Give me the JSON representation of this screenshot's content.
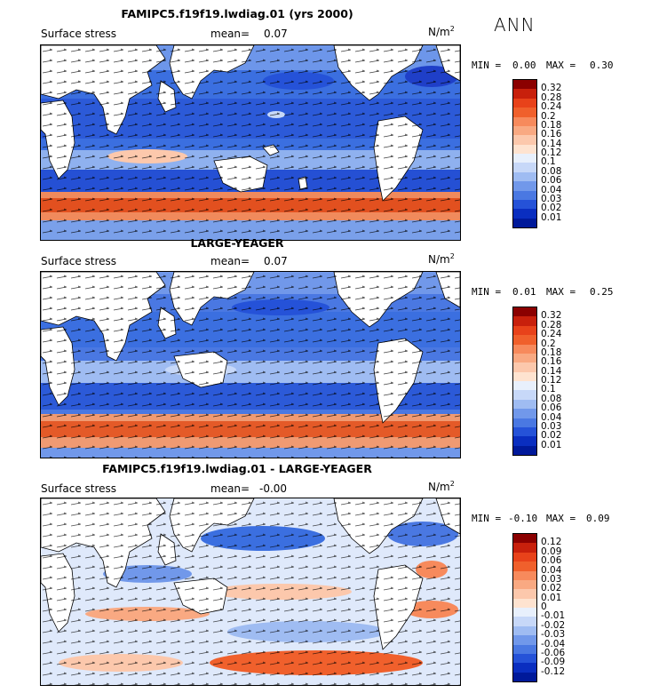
{
  "season": "ANN",
  "colors": {
    "ocean_base": "#3b6fe0",
    "land": "#ffffff"
  },
  "panels": [
    {
      "title": "FAMIPC5.f19f19.lwdiag.01 (yrs 2000)",
      "left_label": "Surface stress",
      "mean_label": "mean=",
      "mean_value": "0.07",
      "unit": "N/m",
      "unit_exp": "2",
      "min_label": "MIN =",
      "min_value": "0.00",
      "max_label": "MAX =",
      "max_value": "0.30",
      "levels": [
        "0.32",
        "0.28",
        "0.24",
        "0.2",
        "0.18",
        "0.16",
        "0.14",
        "0.12",
        "0.1",
        "0.08",
        "0.06",
        "0.04",
        "0.03",
        "0.02",
        "0.01"
      ],
      "colors": [
        "#8b0000",
        "#c8200c",
        "#e8421a",
        "#f0602c",
        "#f78a5c",
        "#f9a982",
        "#fcc8ac",
        "#fee3d0",
        "#e8f0fc",
        "#c7d8f8",
        "#9fbcf2",
        "#7198ea",
        "#4a78e2",
        "#2552d8",
        "#0a2ec0",
        "#00199a"
      ]
    },
    {
      "title": "LARGE-YEAGER",
      "left_label": "Surface stress",
      "mean_label": "mean=",
      "mean_value": "0.07",
      "unit": "N/m",
      "unit_exp": "2",
      "min_label": "MIN =",
      "min_value": "0.01",
      "max_label": "MAX =",
      "max_value": "0.25",
      "levels": [
        "0.32",
        "0.28",
        "0.24",
        "0.2",
        "0.18",
        "0.16",
        "0.14",
        "0.12",
        "0.1",
        "0.08",
        "0.06",
        "0.04",
        "0.03",
        "0.02",
        "0.01"
      ],
      "colors": [
        "#8b0000",
        "#c8200c",
        "#e8421a",
        "#f0602c",
        "#f78a5c",
        "#f9a982",
        "#fcc8ac",
        "#fee3d0",
        "#e8f0fc",
        "#c7d8f8",
        "#9fbcf2",
        "#7198ea",
        "#4a78e2",
        "#2552d8",
        "#0a2ec0",
        "#00199a"
      ]
    },
    {
      "title": "FAMIPC5.f19f19.lwdiag.01 - LARGE-YEAGER",
      "left_label": "Surface stress",
      "mean_label": "mean=",
      "mean_value": "-0.00",
      "unit": "N/m",
      "unit_exp": "2",
      "min_label": "MIN =",
      "min_value": "-0.10",
      "max_label": "MAX =",
      "max_value": "0.09",
      "levels": [
        "0.12",
        "0.09",
        "0.06",
        "0.04",
        "0.03",
        "0.02",
        "0.01",
        "0",
        "-0.01",
        "-0.02",
        "-0.03",
        "-0.04",
        "-0.06",
        "-0.09",
        "-0.12"
      ],
      "colors": [
        "#8b0000",
        "#c8200c",
        "#e8421a",
        "#f0602c",
        "#f78a5c",
        "#f9a982",
        "#fcc8ac",
        "#fee3d0",
        "#e8f0fc",
        "#c7d8f8",
        "#9fbcf2",
        "#7198ea",
        "#4a78e2",
        "#2552d8",
        "#0a2ec0",
        "#00199a"
      ]
    }
  ]
}
